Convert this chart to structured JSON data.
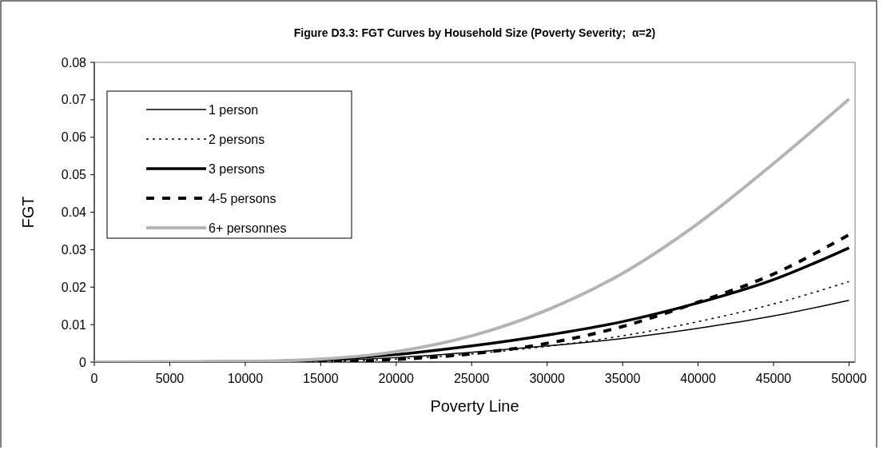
{
  "chart_data": {
    "type": "line",
    "title": "Figure D3.3: FGT Curves by Household Size (Poverty Severity;  α=2)",
    "xlabel": "Poverty Line",
    "ylabel": "FGT",
    "x": [
      0,
      5000,
      10000,
      15000,
      20000,
      25000,
      30000,
      35000,
      40000,
      45000,
      50000
    ],
    "xlim": [
      0,
      50400
    ],
    "xticks": [
      0,
      5000,
      10000,
      15000,
      20000,
      25000,
      30000,
      35000,
      40000,
      45000,
      50000
    ],
    "ylim": [
      0,
      0.08
    ],
    "yticks": [
      0,
      0.01,
      0.02,
      0.03,
      0.04,
      0.05,
      0.06,
      0.07,
      0.08
    ],
    "grid": false,
    "legend": "top left",
    "series": [
      {
        "name": "1 person",
        "color": "#000000",
        "line_style": "solid",
        "values": [
          0,
          0.0001,
          0.0002,
          0.0004,
          0.0012,
          0.0026,
          0.0043,
          0.0063,
          0.009,
          0.0123,
          0.0165
        ]
      },
      {
        "name": "2 persons",
        "color": "#000000",
        "line_style": "dotted",
        "values": [
          0,
          0,
          0.0001,
          0.0002,
          0.0008,
          0.0022,
          0.0042,
          0.007,
          0.0108,
          0.0155,
          0.0215
        ]
      },
      {
        "name": "3 persons",
        "color": "#000000",
        "line_style": "solid",
        "values": [
          0,
          0,
          0.0001,
          0.0006,
          0.002,
          0.0043,
          0.0072,
          0.0108,
          0.0158,
          0.022,
          0.0305
        ]
      },
      {
        "name": "4-5 persons",
        "color": "#000000",
        "line_style": "dashed",
        "values": [
          0,
          0,
          0,
          0.0001,
          0.0007,
          0.0022,
          0.005,
          0.0095,
          0.016,
          0.0235,
          0.034
        ]
      },
      {
        "name": "6+ personnes",
        "color": "#b4b4b4",
        "line_style": "solid",
        "values": [
          0,
          0.0001,
          0.0002,
          0.0008,
          0.0028,
          0.007,
          0.0139,
          0.0237,
          0.037,
          0.053,
          0.0702
        ]
      }
    ]
  }
}
